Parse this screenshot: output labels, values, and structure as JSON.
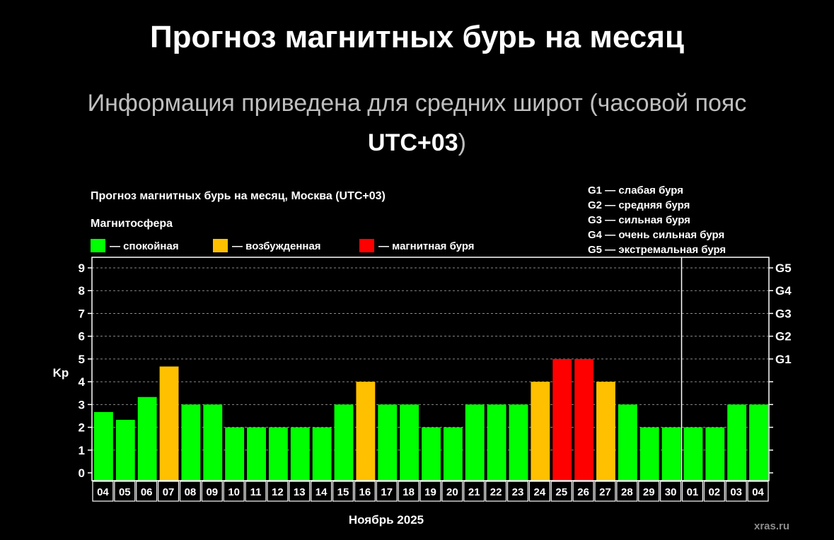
{
  "page": {
    "title": "Прогноз магнитных бурь на месяц",
    "subtitle_text": "Информация приведена для средних широт (часовой пояс",
    "subtitle_zone": "UTC+03",
    "subtitle_close": ")",
    "source": "xras.ru"
  },
  "colors": {
    "calm": "#00ff00",
    "excited": "#ffc000",
    "storm": "#ff0000",
    "background": "#000000",
    "axis": "#ffffff"
  },
  "chart_data": {
    "type": "bar",
    "title": "Прогноз магнитных бурь на месяц, Москва (UTC+03)",
    "legend_title": "Магнитосфера",
    "legend": [
      {
        "key": "calm",
        "label": "— спокойная"
      },
      {
        "key": "excited",
        "label": "— возбужденная"
      },
      {
        "key": "storm",
        "label": "— магнитная буря"
      }
    ],
    "g_legend": [
      "G1 — слабая буря",
      "G2 — средняя буря",
      "G3 — сильная буря",
      "G4 — очень сильная буря",
      "G5 — экстремальная буря"
    ],
    "ylabel": "Kp",
    "xlabel": "Ноябрь 2025",
    "ylim": [
      0,
      9
    ],
    "yticks": [
      "0",
      "1",
      "2",
      "3",
      "4",
      "5",
      "6",
      "7",
      "8",
      "9"
    ],
    "right_ticks": [
      {
        "value": 5,
        "label": "G1"
      },
      {
        "value": 6,
        "label": "G2"
      },
      {
        "value": 7,
        "label": "G3"
      },
      {
        "value": 8,
        "label": "G4"
      },
      {
        "value": 9,
        "label": "G5"
      }
    ],
    "categories": [
      "04",
      "05",
      "06",
      "07",
      "08",
      "09",
      "10",
      "11",
      "12",
      "13",
      "14",
      "15",
      "16",
      "17",
      "18",
      "19",
      "20",
      "21",
      "22",
      "23",
      "24",
      "25",
      "26",
      "27",
      "28",
      "29",
      "30",
      "01",
      "02",
      "03",
      "04"
    ],
    "values": [
      2.67,
      2.33,
      3.33,
      4.67,
      3,
      3,
      2,
      2,
      2,
      2,
      2,
      3,
      4,
      3,
      3,
      2,
      2,
      3,
      3,
      3,
      4,
      5,
      5,
      4,
      3,
      2,
      2,
      2,
      2,
      3,
      3
    ],
    "levels": [
      "calm",
      "calm",
      "calm",
      "excited",
      "calm",
      "calm",
      "calm",
      "calm",
      "calm",
      "calm",
      "calm",
      "calm",
      "excited",
      "calm",
      "calm",
      "calm",
      "calm",
      "calm",
      "calm",
      "calm",
      "excited",
      "storm",
      "storm",
      "excited",
      "calm",
      "calm",
      "calm",
      "calm",
      "calm",
      "calm",
      "calm"
    ],
    "month_separator_after": "30",
    "grid": true
  }
}
